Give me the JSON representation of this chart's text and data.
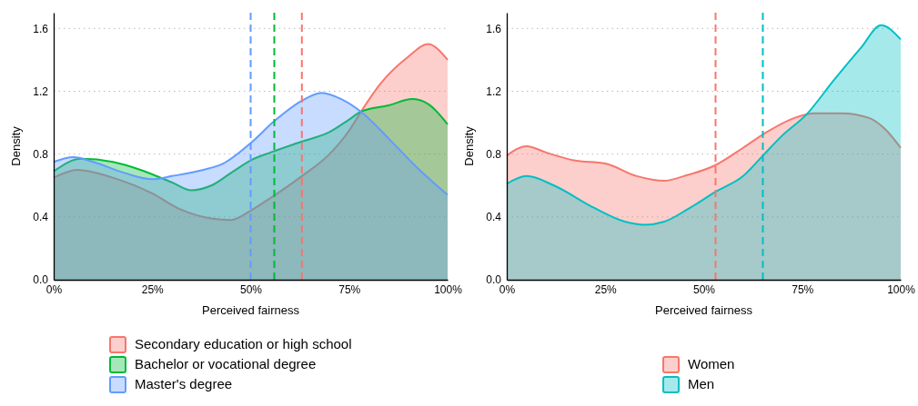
{
  "chart_data": [
    {
      "type": "area",
      "xlabel": "Perceived fairness",
      "ylabel": "Density",
      "xlim": [
        0,
        100
      ],
      "ylim": [
        0,
        1.7
      ],
      "xticks": [
        {
          "value": 0,
          "label": "0%"
        },
        {
          "value": 25,
          "label": "25%"
        },
        {
          "value": 50,
          "label": "50%"
        },
        {
          "value": 75,
          "label": "75%"
        },
        {
          "value": 100,
          "label": "100%"
        }
      ],
      "yticks": [
        {
          "value": 0,
          "label": "0.0"
        },
        {
          "value": 0.4,
          "label": "0.4"
        },
        {
          "value": 0.8,
          "label": "0.8"
        },
        {
          "value": 1.2,
          "label": "1.2"
        },
        {
          "value": 1.6,
          "label": "1.6"
        }
      ],
      "grid": "y",
      "legend": "bottom",
      "series": [
        {
          "name": "Secondary education or high school",
          "color": "#f8766d",
          "x": [
            0,
            6,
            15,
            25,
            32,
            40,
            45,
            50,
            55,
            63,
            70,
            75,
            78,
            83,
            90,
            95,
            100
          ],
          "values": [
            0.65,
            0.7,
            0.65,
            0.55,
            0.45,
            0.39,
            0.38,
            0.44,
            0.52,
            0.66,
            0.8,
            0.95,
            1.07,
            1.25,
            1.42,
            1.5,
            1.4
          ]
        },
        {
          "name": "Bachelor or vocational degree",
          "color": "#00ba38",
          "x": [
            0,
            7,
            15,
            22,
            30,
            35,
            40,
            45,
            50,
            55,
            63,
            70,
            75,
            78,
            85,
            91,
            95,
            100
          ],
          "values": [
            0.69,
            0.77,
            0.75,
            0.7,
            0.62,
            0.57,
            0.6,
            0.68,
            0.76,
            0.81,
            0.88,
            0.94,
            1.02,
            1.07,
            1.11,
            1.15,
            1.12,
            0.99
          ]
        },
        {
          "name": "Master's degree",
          "color": "#619cff",
          "x": [
            0,
            5,
            10,
            18,
            25,
            30,
            38,
            43,
            50,
            56,
            63,
            68,
            73,
            78,
            85,
            92,
            100
          ],
          "values": [
            0.75,
            0.78,
            0.75,
            0.68,
            0.64,
            0.66,
            0.7,
            0.74,
            0.87,
            1.01,
            1.14,
            1.19,
            1.15,
            1.07,
            0.9,
            0.72,
            0.54
          ]
        }
      ],
      "ref_lines": [
        {
          "axis": "x",
          "value": 63,
          "color": "#f8766d",
          "line_style": "dashed"
        },
        {
          "axis": "x",
          "value": 56,
          "color": "#00ba38",
          "line_style": "dashed"
        },
        {
          "axis": "x",
          "value": 50,
          "color": "#619cff",
          "line_style": "dashed"
        }
      ]
    },
    {
      "type": "area",
      "xlabel": "Perceived fairness",
      "ylabel": "Density",
      "xlim": [
        0,
        100
      ],
      "ylim": [
        0,
        1.7
      ],
      "xticks": [
        {
          "value": 0,
          "label": "0%"
        },
        {
          "value": 25,
          "label": "25%"
        },
        {
          "value": 50,
          "label": "50%"
        },
        {
          "value": 75,
          "label": "75%"
        },
        {
          "value": 100,
          "label": "100%"
        }
      ],
      "yticks": [
        {
          "value": 0,
          "label": "0.0"
        },
        {
          "value": 0.4,
          "label": "0.4"
        },
        {
          "value": 0.8,
          "label": "0.8"
        },
        {
          "value": 1.2,
          "label": "1.2"
        },
        {
          "value": 1.6,
          "label": "1.6"
        }
      ],
      "grid": "y",
      "legend": "bottom",
      "series": [
        {
          "name": "Women",
          "color": "#f8766d",
          "x": [
            0,
            5,
            10,
            17,
            25,
            33,
            40,
            45,
            53,
            60,
            66,
            73,
            78,
            85,
            92,
            96,
            100
          ],
          "values": [
            0.79,
            0.85,
            0.81,
            0.76,
            0.74,
            0.66,
            0.63,
            0.66,
            0.73,
            0.84,
            0.94,
            1.03,
            1.06,
            1.06,
            1.03,
            0.96,
            0.84
          ]
        },
        {
          "name": "Men",
          "color": "#00bfc4",
          "x": [
            0,
            5,
            12,
            22,
            30,
            35,
            40,
            46,
            53,
            60,
            65,
            70,
            76,
            83,
            90,
            95,
            100
          ],
          "values": [
            0.61,
            0.66,
            0.6,
            0.46,
            0.37,
            0.35,
            0.37,
            0.45,
            0.56,
            0.66,
            0.79,
            0.92,
            1.05,
            1.27,
            1.48,
            1.62,
            1.53
          ]
        }
      ],
      "ref_lines": [
        {
          "axis": "x",
          "value": 53,
          "color": "#f8766d",
          "line_style": "dashed"
        },
        {
          "axis": "x",
          "value": 65,
          "color": "#00bfc4",
          "line_style": "dashed"
        }
      ]
    }
  ]
}
